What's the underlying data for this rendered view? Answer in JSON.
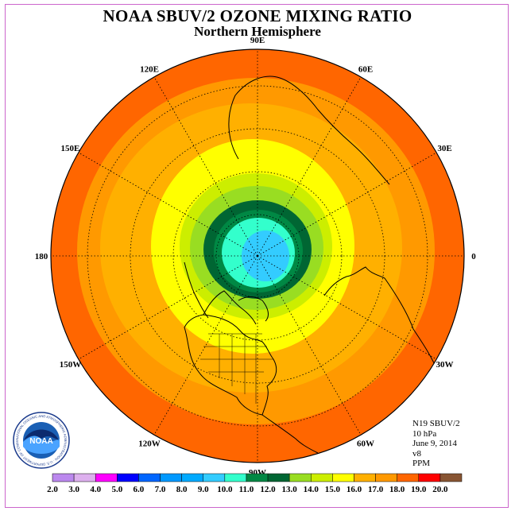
{
  "title": "NOAA SBUV/2 OZONE MIXING RATIO",
  "subtitle": "Northern Hemisphere",
  "meta": {
    "satellite": "N19 SBUV/2",
    "level": "10 hPa",
    "date": "June 9, 2014",
    "version": "v8",
    "units": "PPM"
  },
  "longitude_labels": [
    {
      "text": "0",
      "lon": 0
    },
    {
      "text": "30E",
      "lon": 30
    },
    {
      "text": "60E",
      "lon": 60
    },
    {
      "text": "90E",
      "lon": 90
    },
    {
      "text": "120E",
      "lon": 120
    },
    {
      "text": "150E",
      "lon": 150
    },
    {
      "text": "180",
      "lon": 180
    },
    {
      "text": "150W",
      "lon": 210
    },
    {
      "text": "120W",
      "lon": 240
    },
    {
      "text": "90W",
      "lon": 270
    },
    {
      "text": "60W",
      "lon": 300
    },
    {
      "text": "30W",
      "lon": 330
    }
  ],
  "map_colors": {
    "r18": "#ff6600",
    "r17": "#ff9900",
    "r16": "#ffb000",
    "r15": "#ffff00",
    "r14": "#ccee00",
    "r13": "#99dd22",
    "r12": "#006633",
    "r11": "#008844",
    "r10": "#33ffcc",
    "r9": "#33ccff",
    "border": "#000000"
  },
  "legend": {
    "ticks": [
      "2.0",
      "3.0",
      "4.0",
      "5.0",
      "6.0",
      "7.0",
      "8.0",
      "9.0",
      "10.0",
      "11.0",
      "12.0",
      "13.0",
      "14.0",
      "15.0",
      "16.0",
      "17.0",
      "18.0",
      "19.0",
      "20.0"
    ],
    "colors": [
      "#bb88ee",
      "#ddb0ee",
      "#ff00ff",
      "#0000ff",
      "#0066ff",
      "#0099ff",
      "#00aaff",
      "#33ccff",
      "#33ffcc",
      "#008844",
      "#006633",
      "#99dd22",
      "#ccee00",
      "#ffff00",
      "#ffb000",
      "#ff9900",
      "#ff6600",
      "#ff0000",
      "#885533"
    ]
  },
  "logo": {
    "text": "NOAA",
    "ring_text": "NATIONAL OCEANIC AND ATMOSPHERIC ADMINISTRATION · U.S. DEPARTMENT OF COMMERCE"
  }
}
